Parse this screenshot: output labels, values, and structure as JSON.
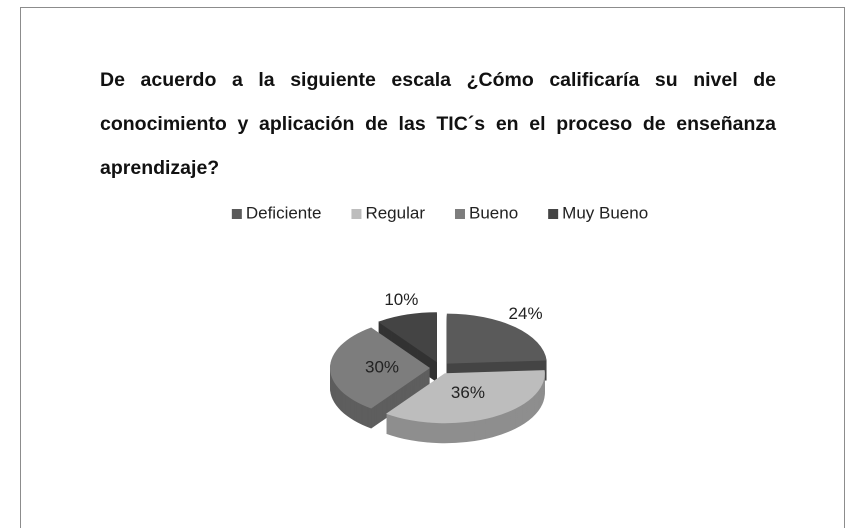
{
  "chart_data": {
    "type": "pie",
    "title": "De acuerdo a la siguiente escala ¿Cómo calificaría su nivel de  conocimiento y aplicación de las TIC´s en el proceso de enseñanza aprendizaje?",
    "categories": [
      "Deficiente",
      "Regular",
      "Bueno",
      "Muy Bueno"
    ],
    "values": [
      24,
      36,
      30,
      10
    ],
    "value_labels": [
      "24%",
      "36%",
      "30%",
      "10%"
    ],
    "colors": [
      "#5a5a5a",
      "#bdbdbd",
      "#7d7d7d",
      "#444444"
    ],
    "legend": "top"
  }
}
